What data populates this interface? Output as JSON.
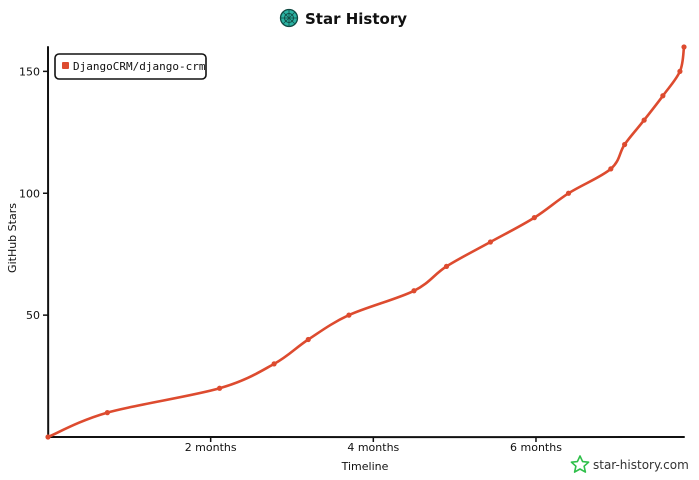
{
  "chart_data": {
    "type": "line",
    "title": "Star History",
    "xlabel": "Timeline",
    "ylabel": "GitHub Stars",
    "x_unit": "months",
    "xlim": [
      0,
      7.82
    ],
    "ylim": [
      0,
      160
    ],
    "x_ticks": [
      {
        "value": 2,
        "label": "2 months"
      },
      {
        "value": 4,
        "label": "4 months"
      },
      {
        "value": 6,
        "label": "6 months"
      }
    ],
    "y_ticks": [
      {
        "value": 50,
        "label": "50"
      },
      {
        "value": 100,
        "label": "100"
      },
      {
        "value": 150,
        "label": "150"
      }
    ],
    "legend_position": "top-left",
    "grid": false,
    "series": [
      {
        "name": "DjangoCRM/django-crm",
        "color": "#dd4b2f",
        "points": [
          {
            "x": 0,
            "y": 0
          },
          {
            "x": 0.73,
            "y": 10
          },
          {
            "x": 2.11,
            "y": 20
          },
          {
            "x": 2.78,
            "y": 30
          },
          {
            "x": 3.2,
            "y": 40
          },
          {
            "x": 3.7,
            "y": 50
          },
          {
            "x": 4.5,
            "y": 60
          },
          {
            "x": 4.9,
            "y": 70
          },
          {
            "x": 5.44,
            "y": 80
          },
          {
            "x": 5.98,
            "y": 90
          },
          {
            "x": 6.4,
            "y": 100
          },
          {
            "x": 6.92,
            "y": 110
          },
          {
            "x": 7.09,
            "y": 120
          },
          {
            "x": 7.33,
            "y": 130
          },
          {
            "x": 7.56,
            "y": 140
          },
          {
            "x": 7.77,
            "y": 150
          },
          {
            "x": 7.82,
            "y": 160
          }
        ]
      }
    ]
  },
  "watermark": {
    "text": "star-history.com",
    "icon": "star-outline-icon"
  },
  "title_icon": "star-history-logo-icon"
}
